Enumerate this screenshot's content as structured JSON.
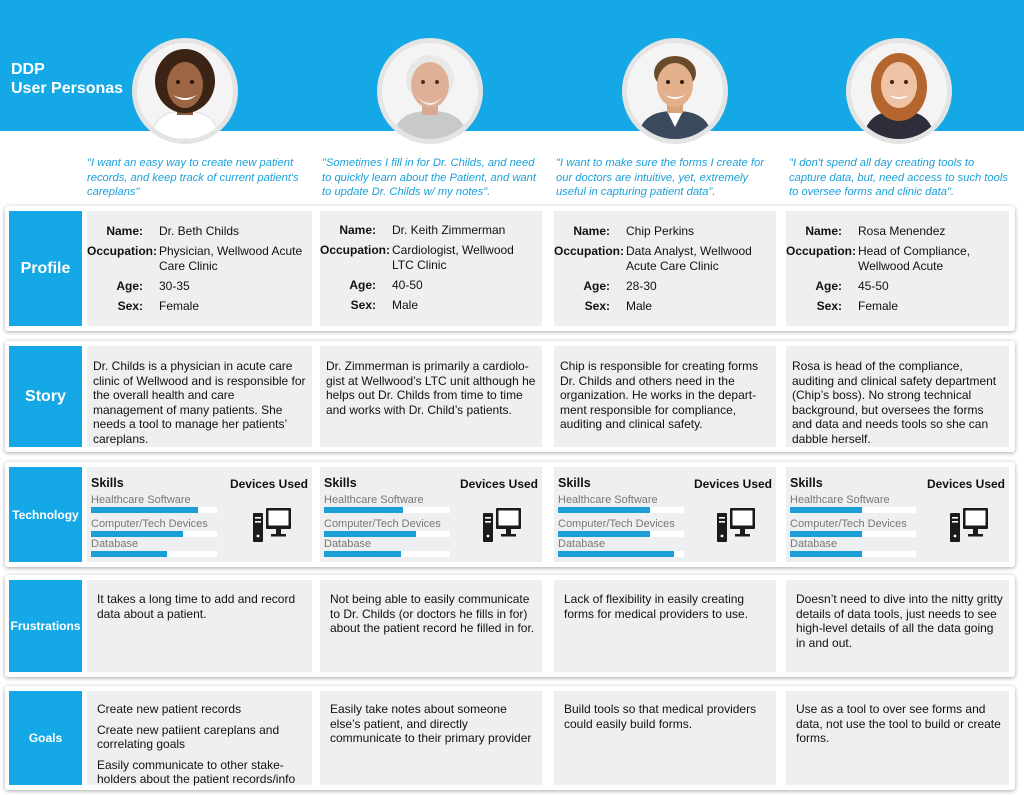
{
  "header": {
    "line1": "DDP",
    "line2": "User Personas"
  },
  "row_labels": {
    "profile": "Profile",
    "story": "Story",
    "technology": "Technology",
    "frustrations": "Frustrations",
    "goals": "Goals"
  },
  "field_labels": {
    "name": "Name:",
    "occupation": "Occupation:",
    "age": "Age:",
    "sex": "Sex:"
  },
  "tech_labels": {
    "skills": "Skills",
    "devices": "Devices Used"
  },
  "personas": [
    {
      "avatar": "female-doctor-portrait",
      "quote": "\"I want an easy way to create new patient records, and keep track of current patient's careplans\"",
      "name": "Dr. Beth Childs",
      "occupation": "Physician, Wellwood Acute Care Clinic",
      "age": "30-35",
      "sex": "Female",
      "story": "Dr. Childs is a physician in acute care clinic of Wellwood and is responsible for the overall health and care management of many patients. She needs a tool to manage her patients’ careplans.",
      "skills": [
        {
          "name": "Healthcare Software",
          "level": 0.85
        },
        {
          "name": "Computer/Tech Devices",
          "level": 0.73
        },
        {
          "name": "Database",
          "level": 0.6
        }
      ],
      "device_icon": "desktop-computer-icon",
      "frustrations": "It takes a long time to add and record data about a patient.",
      "goals": [
        "Create new patient records",
        "Create new patiient careplans and correlating goals",
        "Easily communicate to other stake-holders about the patient records/info"
      ]
    },
    {
      "avatar": "senior-male-portrait",
      "quote": "\"Sometimes I fill in for Dr. Childs, and need to quickly learn about the Patient, and want to update Dr. Childs w/ my notes\".",
      "name": "Dr. Keith Zimmerman",
      "occupation": "Cardiologist, Wellwood LTC Clinic",
      "age": "40-50",
      "sex": "Male",
      "story": "Dr. Zimmerman is primarily a cardiolo-gist at Wellwood’s LTC unit although he helps out Dr. Childs from time to time and works with Dr. Child’s patients.",
      "skills": [
        {
          "name": "Healthcare Software",
          "level": 0.63
        },
        {
          "name": "Computer/Tech Devices",
          "level": 0.73
        },
        {
          "name": "Database",
          "level": 0.61
        }
      ],
      "device_icon": "desktop-computer-icon",
      "frustrations": "Not being able to easily communicate to Dr. Childs (or doctors he fills in for) about the patient record he filled in for.",
      "goals": [
        "Easily take notes about someone else’s patient, and directly communicate to their primary provider"
      ]
    },
    {
      "avatar": "male-analyst-portrait",
      "quote": "\"I want to make sure the forms I create for our doctors are intuitive, yet, extremely useful in capturing patient data\".",
      "name": "Chip Perkins",
      "occupation": "Data Analyst, Wellwood Acute Care Clinic",
      "age": "28-30",
      "sex": "Male",
      "story": "Chip is responsible for creating forms Dr. Childs and others need in the organization.  He works in the depart-ment responsible for compliance, auditing and clinical safety.",
      "skills": [
        {
          "name": "Healthcare Software",
          "level": 0.73
        },
        {
          "name": "Computer/Tech Devices",
          "level": 0.73
        },
        {
          "name": "Database",
          "level": 0.92
        }
      ],
      "device_icon": "desktop-computer-icon",
      "frustrations": "Lack of flexibility in easily creating forms for medical providers to use.",
      "goals": [
        "Build tools so that medical providers could easily build forms."
      ]
    },
    {
      "avatar": "female-manager-portrait",
      "quote": "\"I don't spend all day creating tools to capture data, but, need access to such tools to oversee forms and clinic data\".",
      "name": "Rosa Menendez",
      "occupation": "Head of Compliance, Wellwood Acute",
      "age": "45-50",
      "sex": "Female",
      "story": "Rosa is head of the compliance, auditing and clinical safety department (Chip’s boss).  No strong technical background, but oversees the forms and data and needs tools so she can dabble herself.",
      "skills": [
        {
          "name": "Healthcare Software",
          "level": 0.57
        },
        {
          "name": "Computer/Tech Devices",
          "level": 0.57
        },
        {
          "name": "Database",
          "level": 0.57
        }
      ],
      "device_icon": "desktop-computer-icon",
      "frustrations": "Doesn’t need to dive into the nitty gritty details of data tools, just needs to see high-level details of all the data going in and out.",
      "goals": [
        "Use as a tool to over see forms and data, not use the tool to build or create forms."
      ]
    }
  ]
}
